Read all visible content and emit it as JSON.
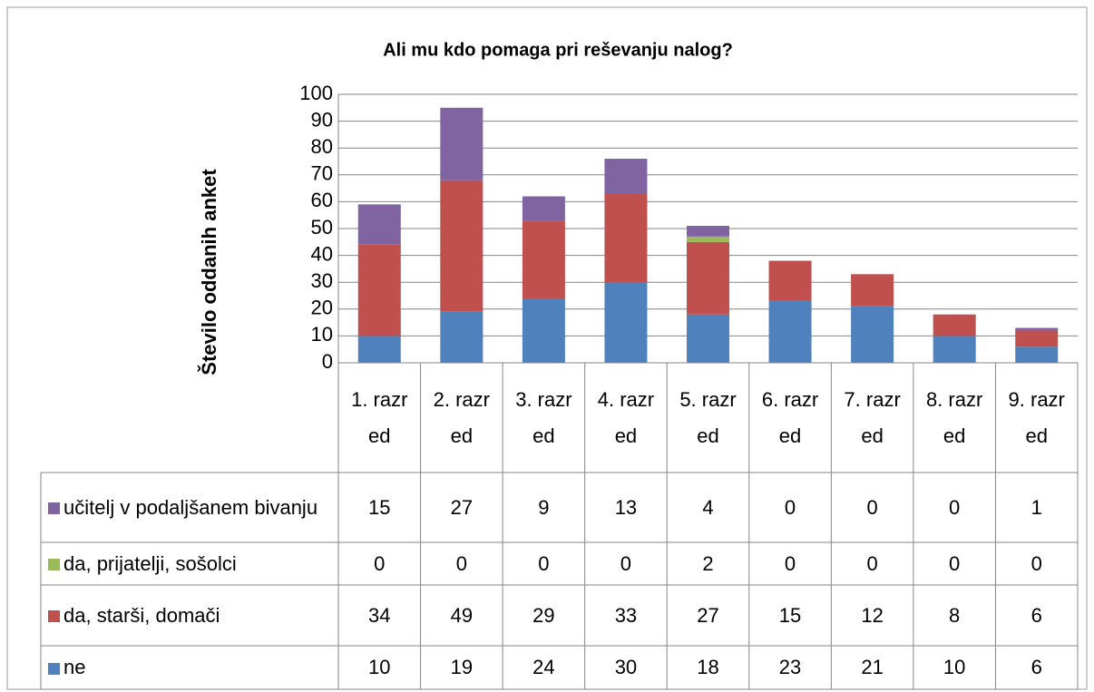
{
  "chart_data": {
    "type": "stacked_bar",
    "title": "Ali mu kdo pomaga pri reševanju nalog?",
    "y_label": "Število oddanih anket",
    "categories": [
      "1. razred",
      "2. razred",
      "3. razred",
      "4. razred",
      "5. razred",
      "6. razred",
      "7. razred",
      "8. razred",
      "9. razred"
    ],
    "series": [
      {
        "name": "ne",
        "color": "#4f81bd",
        "values": [
          10,
          19,
          24,
          30,
          18,
          23,
          21,
          10,
          6
        ]
      },
      {
        "name": "da, starši, domači",
        "color": "#c0504d",
        "values": [
          34,
          49,
          29,
          33,
          27,
          15,
          12,
          8,
          6
        ]
      },
      {
        "name": "da, prijatelji, sošolci",
        "color": "#9bbb59",
        "values": [
          0,
          0,
          0,
          0,
          2,
          0,
          0,
          0,
          0
        ]
      },
      {
        "name": "učitelj v podaljšanem bivanju",
        "color": "#8064a2",
        "values": [
          15,
          27,
          9,
          13,
          4,
          0,
          0,
          0,
          1
        ]
      }
    ],
    "ylim": [
      0,
      100
    ],
    "yticks": [
      0,
      10,
      20,
      30,
      40,
      50,
      60,
      70,
      80,
      90,
      100
    ],
    "grid": true,
    "data_table": true
  }
}
